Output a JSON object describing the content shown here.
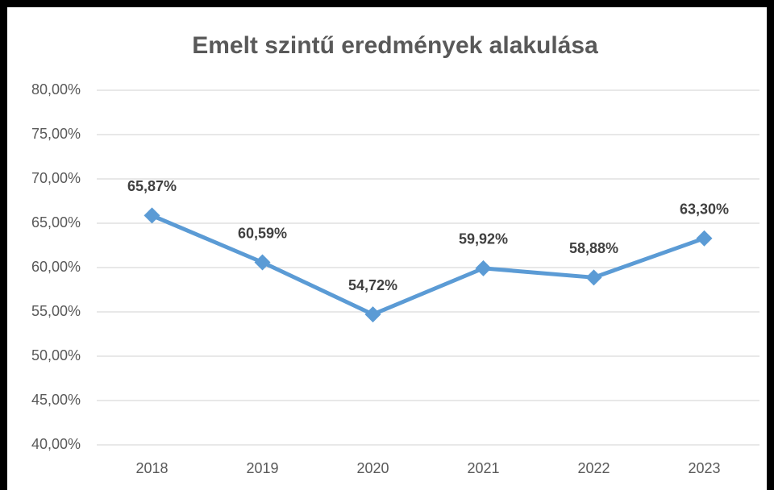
{
  "chart_data": {
    "type": "line",
    "title": "Emelt szintű eredmények alakulása",
    "categories": [
      "2018",
      "2019",
      "2020",
      "2021",
      "2022",
      "2023"
    ],
    "values": [
      65.87,
      60.59,
      54.72,
      59.92,
      58.88,
      63.3
    ],
    "value_labels": [
      "65,87%",
      "60,59%",
      "54,72%",
      "59,92%",
      "58,88%",
      "63,30%"
    ],
    "color": "#5b9bd5",
    "ylim": [
      40,
      80
    ],
    "yticks": [
      {
        "value": 40,
        "label": "40,00%"
      },
      {
        "value": 45,
        "label": "45,00%"
      },
      {
        "value": 50,
        "label": "50,00%"
      },
      {
        "value": 55,
        "label": "55,00%"
      },
      {
        "value": 60,
        "label": "60,00%"
      },
      {
        "value": 65,
        "label": "65,00%"
      },
      {
        "value": 70,
        "label": "70,00%"
      },
      {
        "value": 75,
        "label": "75,00%"
      },
      {
        "value": 80,
        "label": "80,00%"
      }
    ],
    "grid": true
  }
}
